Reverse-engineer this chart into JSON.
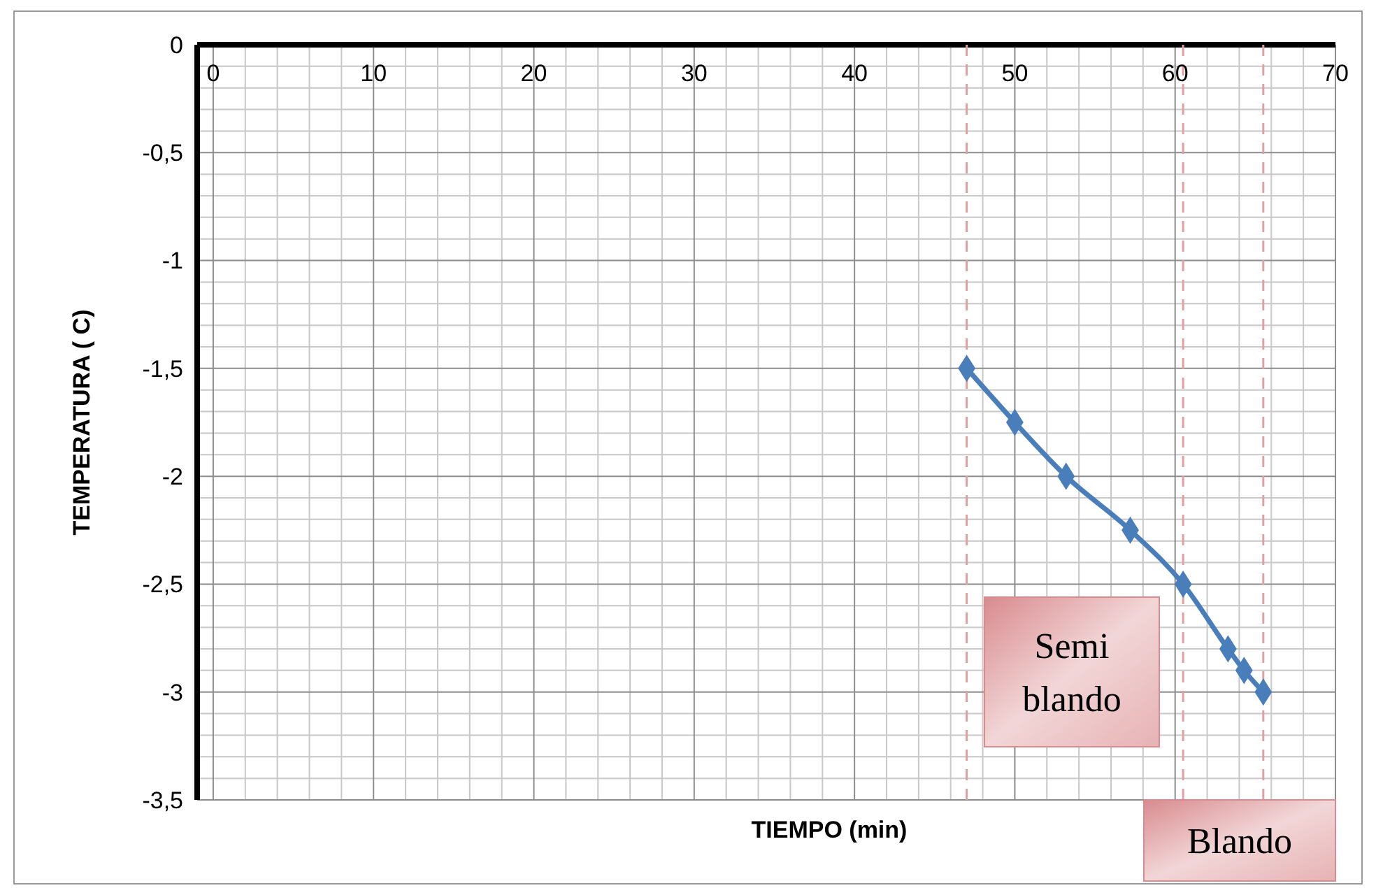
{
  "chart_data": {
    "type": "line",
    "xlabel": "TIEMPO (min)",
    "ylabel": "TEMPERATURA ( C)",
    "x": [
      47,
      50,
      53.2,
      57.2,
      60.5,
      63.3,
      64.3,
      65.5
    ],
    "series": [
      {
        "color": "#4a7ebb",
        "values": [
          -1.5,
          -1.75,
          -2,
          -2.25,
          -2.5,
          -2.8,
          -2.9,
          -3
        ]
      }
    ],
    "xlim": [
      -1,
      70
    ],
    "xticks": [
      0,
      10,
      20,
      30,
      40,
      50,
      60,
      70
    ],
    "ylim": [
      -3.5,
      0
    ],
    "yticks": [
      {
        "value": 0,
        "label": "0"
      },
      {
        "value": -0.5,
        "label": "-0,5"
      },
      {
        "value": -1,
        "label": "-1"
      },
      {
        "value": -1.5,
        "label": "-1,5"
      },
      {
        "value": -2,
        "label": "-2"
      },
      {
        "value": -2.5,
        "label": "-2,5"
      },
      {
        "value": -3,
        "label": "-3"
      },
      {
        "value": -3.5,
        "label": "-3,5"
      }
    ],
    "grid": true,
    "marker": "diamond",
    "line_style": "solid",
    "ref_lines": [
      {
        "axis": "x",
        "value": 47,
        "color": "#e0a0a0",
        "line_style": "dashed"
      },
      {
        "axis": "x",
        "value": 60.5,
        "color": "#e0a0a0",
        "line_style": "dashed"
      },
      {
        "axis": "x",
        "value": 65.5,
        "color": "#e0a0a0",
        "line_style": "dashed"
      }
    ],
    "annotations": [
      "Semi blando",
      "Blando"
    ]
  }
}
